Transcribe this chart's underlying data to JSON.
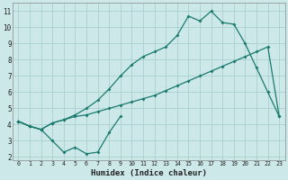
{
  "xlabel": "Humidex (Indice chaleur)",
  "bg_color": "#cce8e8",
  "grid_color": "#aacfcf",
  "line_color": "#1a7a6e",
  "xlim": [
    -0.5,
    23.5
  ],
  "ylim": [
    1.8,
    11.5
  ],
  "xticks": [
    0,
    1,
    2,
    3,
    4,
    5,
    6,
    7,
    8,
    9,
    10,
    11,
    12,
    13,
    14,
    15,
    16,
    17,
    18,
    19,
    20,
    21,
    22,
    23
  ],
  "yticks": [
    2,
    3,
    4,
    5,
    6,
    7,
    8,
    9,
    10,
    11
  ],
  "line1_x": [
    0,
    1,
    2,
    3,
    4,
    5,
    6,
    7,
    8,
    9
  ],
  "line1_y": [
    4.2,
    3.9,
    3.7,
    3.0,
    2.3,
    2.6,
    2.2,
    2.3,
    3.5,
    4.5
  ],
  "line2_x": [
    0,
    1,
    2,
    3,
    4,
    5,
    6,
    7,
    8,
    9,
    10,
    11,
    12,
    13,
    14,
    15,
    16,
    17,
    18,
    19,
    20,
    21,
    22,
    23
  ],
  "line2_y": [
    4.2,
    3.9,
    3.7,
    4.1,
    4.3,
    4.6,
    5.0,
    5.5,
    6.2,
    7.0,
    7.7,
    8.2,
    8.5,
    8.8,
    9.5,
    10.7,
    10.4,
    11.0,
    10.3,
    10.2,
    9.0,
    7.5,
    6.0,
    4.5
  ],
  "line3_x": [
    0,
    1,
    2,
    3,
    4,
    5,
    6,
    7,
    8,
    9,
    10,
    11,
    12,
    13,
    14,
    15,
    16,
    17,
    18,
    19,
    20,
    21,
    22,
    23
  ],
  "line3_y": [
    4.2,
    3.9,
    3.7,
    4.1,
    4.3,
    4.5,
    4.6,
    4.8,
    5.0,
    5.2,
    5.4,
    5.6,
    5.8,
    6.1,
    6.4,
    6.7,
    7.0,
    7.3,
    7.6,
    7.9,
    8.2,
    8.5,
    8.8,
    4.5
  ]
}
